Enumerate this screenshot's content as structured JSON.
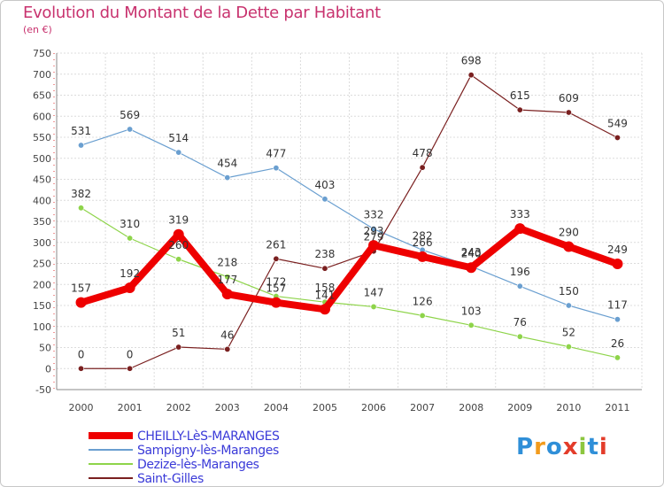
{
  "title": "Evolution du Montant de la Dette par Habitant",
  "subtitle": "(en €)",
  "logo": {
    "text": "Proxiti",
    "colors": [
      "#2f8fd8",
      "#f29b1c",
      "#2f8fd8",
      "#e33c2a",
      "#8cc63f",
      "#2f8fd8",
      "#e33c2a"
    ]
  },
  "chart_data": {
    "type": "line",
    "x": [
      "2000",
      "2001",
      "2002",
      "2003",
      "2004",
      "2005",
      "2006",
      "2007",
      "2008",
      "2009",
      "2010",
      "2011"
    ],
    "ylim": [
      -50,
      750
    ],
    "yticks": [
      -50,
      0,
      50,
      100,
      150,
      200,
      250,
      300,
      350,
      400,
      450,
      500,
      550,
      600,
      650,
      700,
      750
    ],
    "grid": true,
    "legend_position": "bottom-left",
    "series": [
      {
        "name": "CHEILLY-LèS-MARANGES",
        "color": "#ee0000",
        "values": [
          157,
          192,
          319,
          177,
          157,
          141,
          293,
          266,
          240,
          333,
          290,
          249
        ]
      },
      {
        "name": "Sampigny-lès-Maranges",
        "color": "#6a9fd0",
        "values": [
          531,
          569,
          514,
          454,
          477,
          403,
          332,
          282,
          243,
          196,
          150,
          117
        ]
      },
      {
        "name": "Dezize-lès-Maranges",
        "color": "#8ed44a",
        "values": [
          382,
          310,
          260,
          218,
          172,
          158,
          147,
          126,
          103,
          76,
          52,
          26
        ]
      },
      {
        "name": "Saint-Gilles",
        "color": "#7a2020",
        "values": [
          0,
          0,
          51,
          46,
          261,
          238,
          279,
          478,
          698,
          615,
          609,
          549
        ]
      }
    ]
  }
}
